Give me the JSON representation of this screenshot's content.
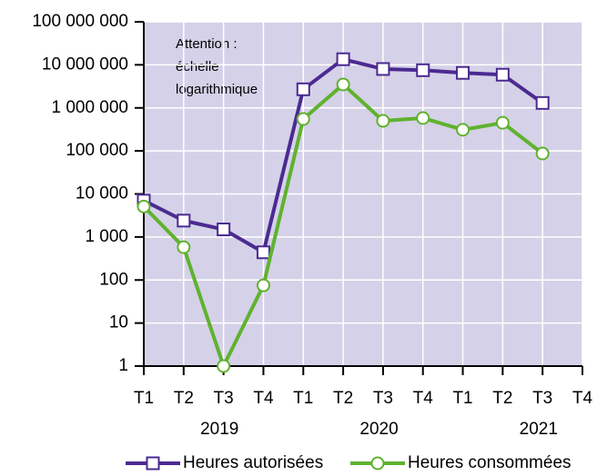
{
  "chart_data": {
    "type": "line",
    "annotation": [
      "Attention :",
      "échelle",
      "logarithmique"
    ],
    "categories": [
      "T1",
      "T2",
      "T3",
      "T4",
      "T1",
      "T2",
      "T3",
      "T4",
      "T1",
      "T2",
      "T3",
      "T4"
    ],
    "groups": [
      "2019",
      "2020",
      "2021"
    ],
    "log_scale": true,
    "grid": true,
    "ylim": [
      1,
      100000000
    ],
    "yticks": [
      1,
      10,
      100,
      {
        "value": 1000,
        "label": "1 000"
      },
      {
        "value": 10000,
        "label": "10 000"
      },
      {
        "value": 100000,
        "label": "100 000"
      },
      {
        "value": 1000000,
        "label": "1 000 000"
      },
      {
        "value": 10000000,
        "label": "10 000 000"
      },
      {
        "value": 100000000,
        "label": "100 000 000"
      }
    ],
    "series": [
      {
        "name": "Heures autorisées",
        "color": "#4b2a91",
        "marker": "square",
        "values": [
          7000,
          2400,
          1500,
          440,
          2700000,
          13500000,
          8000000,
          7500000,
          6500000,
          5900000,
          1300000,
          null
        ]
      },
      {
        "name": "Heures consommées",
        "color": "#5fb22e",
        "marker": "circle",
        "values": [
          5100,
          580,
          1,
          75,
          550000,
          3500000,
          500000,
          580000,
          310000,
          450000,
          87000,
          null
        ]
      }
    ]
  }
}
